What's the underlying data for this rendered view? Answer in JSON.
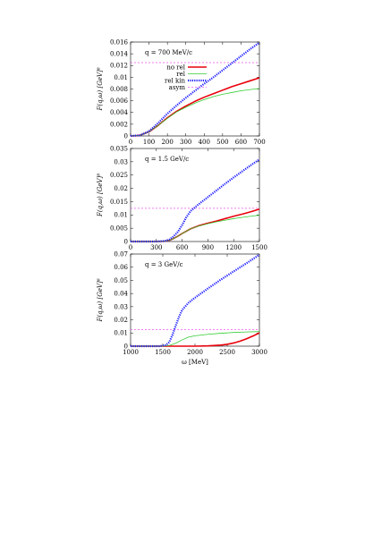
{
  "chart_data": [
    {
      "type": "line",
      "annotation": "q = 700 MeV/c",
      "ylabel": "F(q,ω) [GeV]⁸",
      "xlabel": "",
      "xlim": [
        0,
        700
      ],
      "ylim": [
        0,
        0.016
      ],
      "xticks": [
        0,
        100,
        200,
        300,
        400,
        500,
        600,
        700
      ],
      "xtick_labels": [
        "0",
        "100",
        "200",
        "300",
        "400",
        "500",
        "600",
        "700"
      ],
      "yticks": [
        0,
        0.002,
        0.004,
        0.006,
        0.008,
        0.01,
        0.012,
        0.014,
        0.016
      ],
      "ytick_labels": [
        "0",
        "0.002",
        "0.004",
        "0.006",
        "0.008",
        "0.01",
        "0.012",
        "0.014",
        "0.016"
      ],
      "legend_position": "top-left",
      "series": [
        {
          "name": "no rel",
          "color": "#e8000b",
          "style": "solid",
          "width": 1.6,
          "x": [
            0,
            50,
            100,
            150,
            200,
            250,
            300,
            350,
            400,
            450,
            500,
            550,
            600,
            650,
            700
          ],
          "y": [
            0,
            0.0001,
            0.0007,
            0.0018,
            0.0031,
            0.0042,
            0.0051,
            0.0059,
            0.0066,
            0.0072,
            0.0078,
            0.0084,
            0.0089,
            0.0094,
            0.0099
          ]
        },
        {
          "name": "rel",
          "color": "#33cc33",
          "style": "solid",
          "width": 0.8,
          "x": [
            0,
            50,
            100,
            150,
            200,
            250,
            300,
            350,
            400,
            450,
            500,
            550,
            600,
            650,
            700
          ],
          "y": [
            0,
            0.0001,
            0.0007,
            0.0018,
            0.003,
            0.0041,
            0.0049,
            0.0056,
            0.0062,
            0.0067,
            0.0071,
            0.0074,
            0.0077,
            0.0079,
            0.0081
          ]
        },
        {
          "name": "rel kin",
          "color": "#1a1aff",
          "style": "dotted",
          "width": 2.2,
          "x": [
            0,
            50,
            100,
            150,
            200,
            250,
            300,
            350,
            400,
            450,
            500,
            550,
            600,
            650,
            700
          ],
          "y": [
            0,
            0.0001,
            0.0008,
            0.0022,
            0.0038,
            0.0052,
            0.0065,
            0.0077,
            0.0089,
            0.01,
            0.0112,
            0.0124,
            0.0136,
            0.0148,
            0.0159
          ]
        },
        {
          "name": "asym",
          "color": "#ee55ee",
          "style": "dashed",
          "width": 0.8,
          "x": [
            0,
            700
          ],
          "y": [
            0.0125,
            0.0125
          ]
        }
      ]
    },
    {
      "type": "line",
      "annotation": "q = 1.5 GeV/c",
      "ylabel": "F(q,ω) [GeV]⁸",
      "xlabel": "",
      "xlim": [
        0,
        1500
      ],
      "ylim": [
        0,
        0.035
      ],
      "xticks": [
        0,
        300,
        600,
        900,
        1200,
        1500
      ],
      "xtick_labels": [
        "0",
        "300",
        "600",
        "900",
        "1200",
        "1500"
      ],
      "yticks": [
        0,
        0.005,
        0.01,
        0.015,
        0.02,
        0.025,
        0.03,
        0.035
      ],
      "ytick_labels": [
        "0",
        "0.005",
        "0.01",
        "0.015",
        "0.02",
        "0.025",
        "0.03",
        "0.035"
      ],
      "series": [
        {
          "name": "no rel",
          "color": "#e8000b",
          "style": "solid",
          "width": 1.6,
          "x": [
            0,
            300,
            400,
            450,
            500,
            550,
            600,
            700,
            800,
            900,
            1000,
            1100,
            1200,
            1300,
            1400,
            1500
          ],
          "y": [
            0,
            0,
            0.0001,
            0.0004,
            0.0011,
            0.002,
            0.003,
            0.0048,
            0.006,
            0.0069,
            0.0077,
            0.0086,
            0.0095,
            0.0103,
            0.0112,
            0.0122
          ]
        },
        {
          "name": "rel",
          "color": "#33cc33",
          "style": "solid",
          "width": 0.8,
          "x": [
            0,
            300,
            400,
            450,
            500,
            550,
            600,
            700,
            800,
            900,
            1000,
            1100,
            1200,
            1300,
            1400,
            1500
          ],
          "y": [
            0,
            0,
            0.0001,
            0.0004,
            0.0011,
            0.002,
            0.003,
            0.0048,
            0.0059,
            0.0067,
            0.0074,
            0.008,
            0.0086,
            0.0091,
            0.0095,
            0.0099
          ]
        },
        {
          "name": "rel kin",
          "color": "#1a1aff",
          "style": "dotted",
          "width": 2.2,
          "x": [
            0,
            300,
            400,
            450,
            500,
            550,
            600,
            650,
            700,
            800,
            900,
            1000,
            1100,
            1200,
            1300,
            1400,
            1500
          ],
          "y": [
            0,
            0,
            0.0002,
            0.0007,
            0.0019,
            0.0036,
            0.0062,
            0.0092,
            0.0115,
            0.0142,
            0.0167,
            0.0192,
            0.0217,
            0.0241,
            0.0264,
            0.0287,
            0.0309
          ]
        },
        {
          "name": "asym",
          "color": "#ee55ee",
          "style": "dashed",
          "width": 0.8,
          "x": [
            0,
            1500
          ],
          "y": [
            0.0125,
            0.0125
          ]
        }
      ]
    },
    {
      "type": "line",
      "annotation": "q = 3 GeV/c",
      "ylabel": "F(q,ω) [GeV]⁸",
      "xlabel": "ω [MeV]",
      "xlim": [
        1000,
        3000
      ],
      "ylim": [
        0,
        0.07
      ],
      "xticks": [
        1000,
        1500,
        2000,
        2500,
        3000
      ],
      "xtick_labels": [
        "1000",
        "1500",
        "2000",
        "2500",
        "3000"
      ],
      "yticks": [
        0,
        0.01,
        0.02,
        0.03,
        0.04,
        0.05,
        0.06,
        0.07
      ],
      "ytick_labels": [
        "0",
        "0.01",
        "0.02",
        "0.03",
        "0.04",
        "0.05",
        "0.06",
        "0.07"
      ],
      "series": [
        {
          "name": "no rel",
          "color": "#e8000b",
          "style": "solid",
          "width": 1.6,
          "x": [
            1000,
            2000,
            2200,
            2400,
            2500,
            2600,
            2700,
            2800,
            2900,
            3000
          ],
          "y": [
            0,
            0,
            0.0002,
            0.0008,
            0.0014,
            0.0024,
            0.0038,
            0.0056,
            0.0077,
            0.0101
          ]
        },
        {
          "name": "rel",
          "color": "#33cc33",
          "style": "solid",
          "width": 0.8,
          "x": [
            1000,
            1500,
            1600,
            1700,
            1800,
            1900,
            2000,
            2200,
            2400,
            2600,
            2800,
            3000
          ],
          "y": [
            0,
            0,
            0.0005,
            0.0022,
            0.0048,
            0.0069,
            0.0079,
            0.009,
            0.0098,
            0.0104,
            0.0108,
            0.0111
          ]
        },
        {
          "name": "rel kin",
          "color": "#1a1aff",
          "style": "dotted",
          "width": 2.2,
          "x": [
            1000,
            1450,
            1550,
            1600,
            1650,
            1700,
            1750,
            1800,
            1900,
            2000,
            2200,
            2400,
            2600,
            2800,
            3000
          ],
          "y": [
            0,
            0,
            0.0008,
            0.003,
            0.0085,
            0.0155,
            0.022,
            0.0275,
            0.033,
            0.0368,
            0.0438,
            0.0505,
            0.0568,
            0.063,
            0.0695
          ]
        },
        {
          "name": "asym",
          "color": "#ee55ee",
          "style": "dashed",
          "width": 0.8,
          "x": [
            1000,
            3000
          ],
          "y": [
            0.0125,
            0.0125
          ]
        }
      ]
    }
  ]
}
